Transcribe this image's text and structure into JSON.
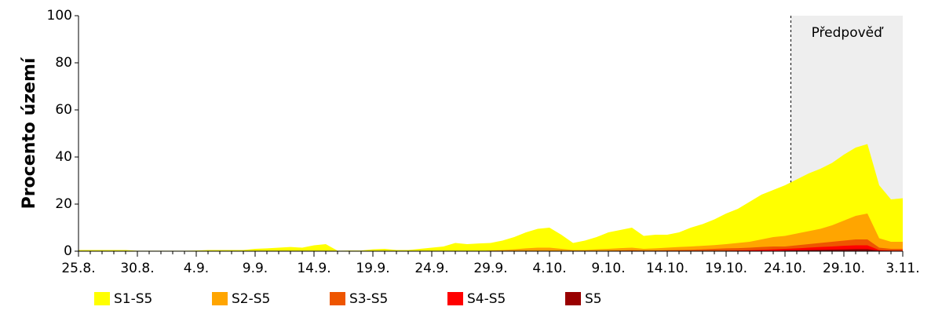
{
  "chart_data": {
    "type": "area",
    "ylabel": "Procento území",
    "ylim": [
      0,
      100
    ],
    "yticks": [
      0,
      20,
      40,
      60,
      80,
      100
    ],
    "forecast": {
      "label": "Předpověď",
      "from": 60.5
    },
    "categories": [
      "25.8.",
      null,
      null,
      null,
      null,
      "30.8.",
      null,
      null,
      null,
      null,
      "4.9.",
      null,
      null,
      null,
      null,
      "9.9.",
      null,
      null,
      null,
      null,
      "14.9.",
      null,
      null,
      null,
      null,
      "19.9.",
      null,
      null,
      null,
      null,
      "24.9.",
      null,
      null,
      null,
      null,
      "29.9.",
      null,
      null,
      null,
      null,
      "4.10.",
      null,
      null,
      null,
      null,
      "9.10.",
      null,
      null,
      null,
      null,
      "14.10.",
      null,
      null,
      null,
      null,
      "19.10.",
      null,
      null,
      null,
      null,
      "24.10.",
      null,
      null,
      null,
      null,
      "29.10.",
      null,
      null,
      null,
      null,
      "3.11."
    ],
    "series": [
      {
        "name": "S1-S5",
        "color": "#ffff00",
        "values": [
          0.5,
          0.5,
          0.5,
          0.5,
          0.5,
          0.2,
          0.2,
          0.2,
          0.2,
          0.2,
          0.3,
          0.5,
          0.5,
          0.5,
          0.5,
          1,
          1.2,
          1.5,
          1.8,
          1.5,
          2.5,
          3,
          0.2,
          0.3,
          0.3,
          0.8,
          1,
          0.5,
          0.5,
          1,
          1.5,
          2,
          3.5,
          3,
          3.3,
          3.5,
          4.5,
          6,
          8,
          9.5,
          10,
          7,
          3.5,
          4.5,
          6,
          8,
          9,
          10,
          6.5,
          7,
          7,
          8,
          10,
          11.5,
          13.5,
          16,
          18,
          21,
          24,
          26,
          28,
          30.5,
          33,
          35,
          37.5,
          41,
          44,
          45.5,
          28,
          22,
          22.5
        ]
      },
      {
        "name": "S2-S5",
        "color": "#ffa500",
        "values": [
          0,
          0,
          0,
          0,
          0,
          0,
          0,
          0,
          0,
          0,
          0,
          0,
          0,
          0,
          0,
          0,
          0,
          0,
          0,
          0,
          0,
          0,
          0,
          0,
          0,
          0,
          0,
          0,
          0,
          0,
          0,
          0,
          0,
          0,
          0,
          0.3,
          0.5,
          0.8,
          1.2,
          1.5,
          1.5,
          1,
          0.5,
          0.5,
          0.8,
          1,
          1.3,
          1.5,
          1,
          1.2,
          1.5,
          1.8,
          2,
          2.3,
          2.6,
          3,
          3.5,
          4,
          5,
          6,
          6.5,
          7.5,
          8.5,
          9.5,
          11,
          13,
          15,
          16,
          5.5,
          4,
          4
        ]
      },
      {
        "name": "S3-S5",
        "color": "#ee5500",
        "values": [
          0,
          0,
          0,
          0,
          0,
          0,
          0,
          0,
          0,
          0,
          0,
          0,
          0,
          0,
          0,
          0,
          0,
          0,
          0,
          0,
          0,
          0,
          0,
          0,
          0,
          0,
          0,
          0,
          0,
          0,
          0,
          0,
          0,
          0,
          0,
          0,
          0,
          0,
          0,
          0,
          0,
          0,
          0,
          0,
          0,
          0.2,
          0.3,
          0.4,
          0.3,
          0.3,
          0.4,
          0.5,
          0.6,
          0.8,
          1,
          1.2,
          1.3,
          1.5,
          1.8,
          2,
          2,
          2.5,
          3,
          3.5,
          4,
          4.5,
          5,
          5,
          1.5,
          1,
          1
        ]
      },
      {
        "name": "S4-S5",
        "color": "#ff0000",
        "values": [
          0,
          0,
          0,
          0,
          0,
          0,
          0,
          0,
          0,
          0,
          0,
          0,
          0,
          0,
          0,
          0,
          0,
          0,
          0,
          0,
          0,
          0,
          0,
          0,
          0,
          0,
          0,
          0,
          0,
          0,
          0,
          0,
          0,
          0,
          0,
          0,
          0,
          0,
          0,
          0,
          0,
          0,
          0,
          0,
          0,
          0,
          0,
          0,
          0,
          0,
          0,
          0,
          0,
          0,
          0,
          0.2,
          0.3,
          0.4,
          0.6,
          0.8,
          1,
          1.2,
          1.5,
          1.8,
          2,
          2.3,
          2.5,
          2.5,
          0.5,
          0.3,
          0.3
        ]
      },
      {
        "name": "S5",
        "color": "#990000",
        "values": [
          0,
          0,
          0,
          0,
          0,
          0,
          0,
          0,
          0,
          0,
          0,
          0,
          0,
          0,
          0,
          0,
          0,
          0,
          0,
          0,
          0,
          0,
          0,
          0,
          0,
          0,
          0,
          0,
          0,
          0,
          0,
          0,
          0,
          0,
          0,
          0,
          0,
          0,
          0,
          0,
          0,
          0,
          0,
          0,
          0,
          0,
          0,
          0,
          0,
          0,
          0,
          0,
          0,
          0,
          0,
          0,
          0,
          0,
          0,
          0,
          0.3,
          0.4,
          0.5,
          0.6,
          0.7,
          0.8,
          0.9,
          0.9,
          0.2,
          0.1,
          0.1
        ]
      }
    ]
  }
}
